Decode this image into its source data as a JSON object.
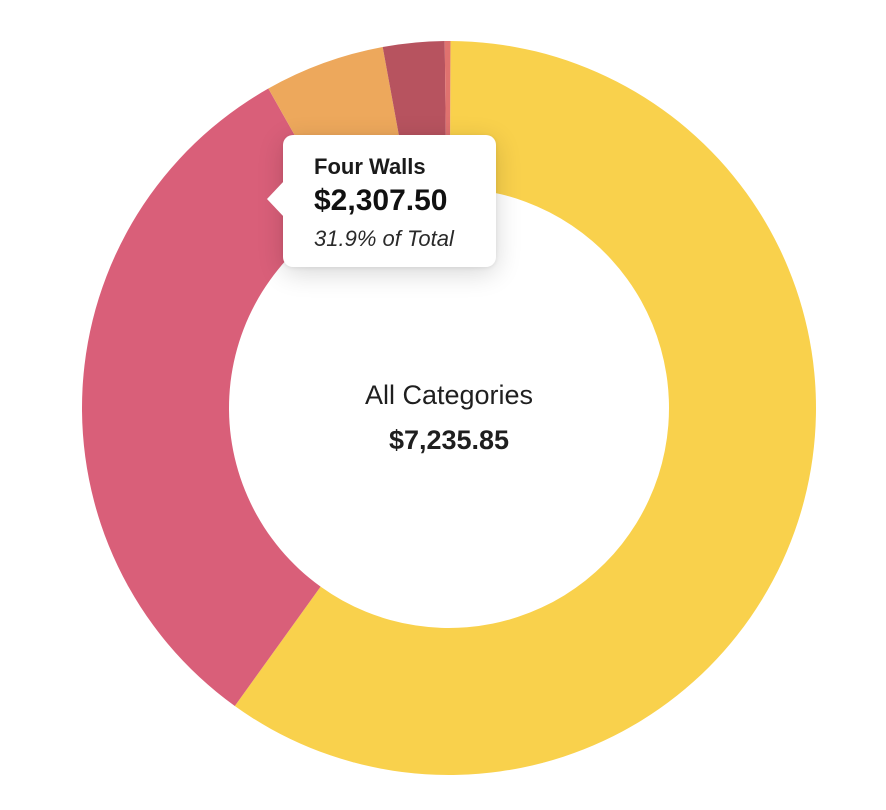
{
  "chart_data": {
    "type": "pie",
    "center_label": "All Categories",
    "total": "$7,235.85",
    "slices": [
      {
        "value": 4331.02,
        "color": "#F9D14C"
      },
      {
        "value": 2307.5,
        "color": "#D95F79"
      },
      {
        "value": 383.5,
        "color": "#EDA85C"
      },
      {
        "value": 195.8,
        "color": "#B7535F"
      },
      {
        "value": 18.03,
        "color": "#E0726F"
      }
    ]
  },
  "tooltip": {
    "name": "Four Walls",
    "value": "$2,307.50",
    "percent": "31.9% of Total"
  }
}
